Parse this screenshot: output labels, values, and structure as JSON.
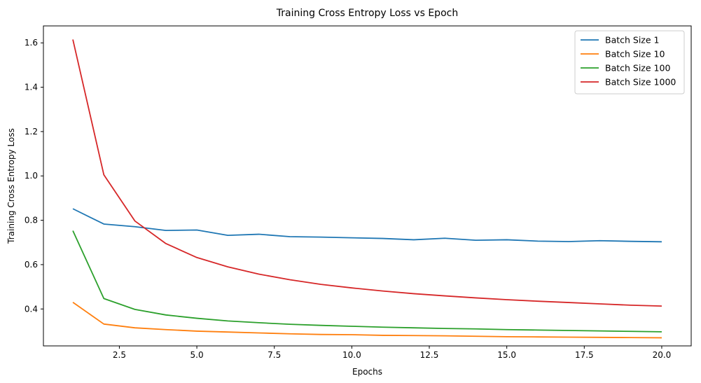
{
  "chart_data": {
    "type": "line",
    "title": "Training Cross Entropy Loss vs Epoch",
    "xlabel": "Epochs",
    "ylabel": "Training Cross Entropy Loss",
    "xlim": [
      0.05,
      20.95
    ],
    "ylim": [
      0.2335,
      1.6765
    ],
    "xticks": [
      2.5,
      5.0,
      7.5,
      10.0,
      12.5,
      15.0,
      17.5,
      20.0
    ],
    "xtick_labels": [
      "2.5",
      "5.0",
      "7.5",
      "10.0",
      "12.5",
      "15.0",
      "17.5",
      "20.0"
    ],
    "yticks": [
      0.4,
      0.6,
      0.8,
      1.0,
      1.2,
      1.4,
      1.6
    ],
    "ytick_labels": [
      "0.4",
      "0.6",
      "0.8",
      "1.0",
      "1.2",
      "1.4",
      "1.6"
    ],
    "grid": false,
    "legend_position": "top-right",
    "x": [
      1,
      2,
      3,
      4,
      5,
      6,
      7,
      8,
      9,
      10,
      11,
      12,
      13,
      14,
      15,
      16,
      17,
      18,
      19,
      20
    ],
    "series": [
      {
        "name": "Batch Size 1",
        "color": "#1f77b4",
        "values": [
          0.852,
          0.783,
          0.771,
          0.754,
          0.756,
          0.732,
          0.737,
          0.726,
          0.724,
          0.721,
          0.718,
          0.712,
          0.719,
          0.71,
          0.712,
          0.706,
          0.704,
          0.708,
          0.705,
          0.703
        ]
      },
      {
        "name": "Batch Size 10",
        "color": "#ff7f0e",
        "values": [
          0.43,
          0.332,
          0.315,
          0.307,
          0.3,
          0.296,
          0.292,
          0.288,
          0.285,
          0.284,
          0.281,
          0.28,
          0.279,
          0.277,
          0.275,
          0.274,
          0.273,
          0.272,
          0.271,
          0.27
        ]
      },
      {
        "name": "Batch Size 100",
        "color": "#2ca02c",
        "values": [
          0.753,
          0.447,
          0.398,
          0.373,
          0.358,
          0.346,
          0.338,
          0.331,
          0.326,
          0.322,
          0.318,
          0.315,
          0.312,
          0.31,
          0.307,
          0.305,
          0.303,
          0.301,
          0.299,
          0.297
        ]
      },
      {
        "name": "Batch Size 1000",
        "color": "#d62728",
        "values": [
          1.615,
          1.005,
          0.797,
          0.695,
          0.632,
          0.59,
          0.557,
          0.532,
          0.511,
          0.495,
          0.481,
          0.469,
          0.459,
          0.45,
          0.442,
          0.435,
          0.429,
          0.423,
          0.417,
          0.413
        ]
      }
    ]
  }
}
